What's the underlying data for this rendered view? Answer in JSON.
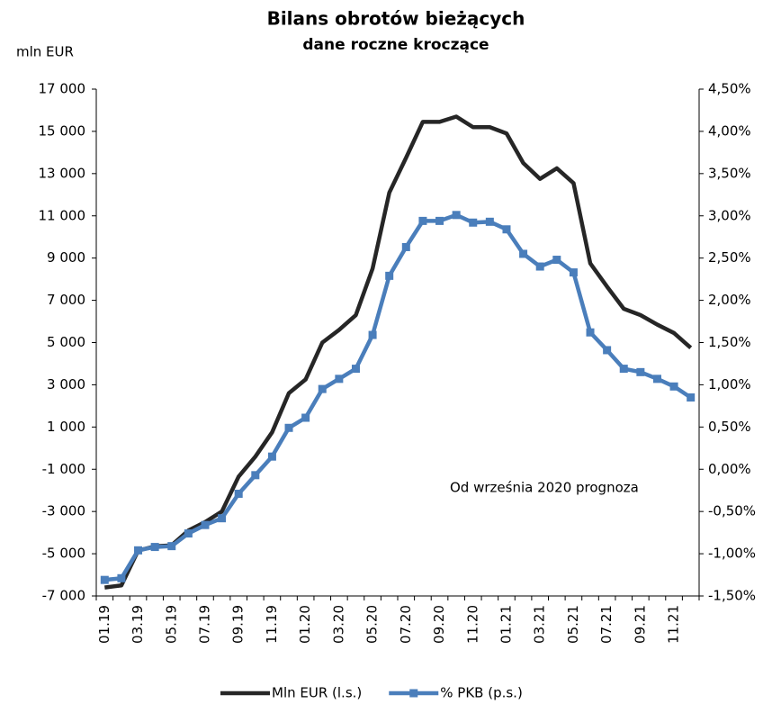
{
  "chart_data": {
    "type": "line",
    "title": "Bilans obrotów bieżących",
    "subtitle": "dane roczne kroczące",
    "y_label": "mln EUR",
    "annotation": "Od września 2020 prognoza",
    "categories": [
      "01.19",
      null,
      "03.19",
      null,
      "05.19",
      null,
      "07.19",
      null,
      "09.19",
      null,
      "11.19",
      null,
      "01.20",
      null,
      "03.20",
      null,
      "05.20",
      null,
      "07.20",
      null,
      "09.20",
      null,
      "11.20",
      null,
      "01.21",
      null,
      "03.21",
      null,
      "05.21",
      null,
      "07.21",
      null,
      "09.21",
      null,
      "11.21",
      null
    ],
    "series": [
      {
        "name": "Mln EUR (l.s.)",
        "color": "#262626",
        "marker": false,
        "values": [
          -6600,
          -6500,
          -4850,
          -4650,
          -4600,
          -3900,
          -3500,
          -3000,
          -1350,
          -400,
          750,
          2600,
          3250,
          5000,
          5600,
          6300,
          8500,
          12100,
          13750,
          15450,
          15450,
          15700,
          15200,
          15200,
          14900,
          13500,
          12750,
          13250,
          12550,
          8750,
          7650,
          6600,
          6300,
          5850,
          5450,
          4750
        ]
      },
      {
        "name": "% PKB (p.s.)",
        "color": "#4a7ebb",
        "marker": true,
        "axis": "y2",
        "values": [
          -1.31,
          -1.29,
          -0.96,
          -0.92,
          -0.91,
          -0.76,
          -0.66,
          -0.58,
          -0.29,
          -0.07,
          0.15,
          0.49,
          0.61,
          0.95,
          1.07,
          1.19,
          1.59,
          2.29,
          2.63,
          2.94,
          2.94,
          3.01,
          2.92,
          2.93,
          2.84,
          2.55,
          2.4,
          2.48,
          2.33,
          1.62,
          1.41,
          1.19,
          1.15,
          1.07,
          0.98,
          0.85
        ]
      }
    ],
    "ylim": [
      -7000,
      17000
    ],
    "yticks": [
      {
        "value": -7000,
        "label": "-7 000"
      },
      {
        "value": -5000,
        "label": "-5 000"
      },
      {
        "value": -3000,
        "label": "-3 000"
      },
      {
        "value": -1000,
        "label": "-1 000"
      },
      {
        "value": 1000,
        "label": "1 000"
      },
      {
        "value": 3000,
        "label": "3 000"
      },
      {
        "value": 5000,
        "label": "5 000"
      },
      {
        "value": 7000,
        "label": "7 000"
      },
      {
        "value": 9000,
        "label": "9 000"
      },
      {
        "value": 11000,
        "label": "11 000"
      },
      {
        "value": 13000,
        "label": "13 000"
      },
      {
        "value": 15000,
        "label": "15 000"
      },
      {
        "value": 17000,
        "label": "17 000"
      }
    ],
    "y2lim": [
      -1.5,
      4.5
    ],
    "y2ticks": [
      {
        "value": -1.5,
        "label": "-1,50%"
      },
      {
        "value": -1,
        "label": "-1,00%"
      },
      {
        "value": -0.5,
        "label": "-0,50%"
      },
      {
        "value": 0,
        "label": "0,00%"
      },
      {
        "value": 0.5,
        "label": "0,50%"
      },
      {
        "value": 1,
        "label": "1,00%"
      },
      {
        "value": 1.5,
        "label": "1,50%"
      },
      {
        "value": 2,
        "label": "2,00%"
      },
      {
        "value": 2.5,
        "label": "2,50%"
      },
      {
        "value": 3,
        "label": "3,00%"
      },
      {
        "value": 3.5,
        "label": "3,50%"
      },
      {
        "value": 4,
        "label": "4,00%"
      },
      {
        "value": 4.5,
        "label": "4,50%"
      }
    ],
    "grid": false,
    "legend": "bottom"
  }
}
